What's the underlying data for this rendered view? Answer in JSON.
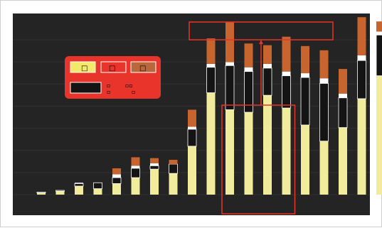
{
  "chart_data": {
    "type": "bar",
    "stacked": true,
    "categories": [
      "",
      "",
      "",
      "",
      "",
      "",
      "",
      "",
      "",
      "",
      "",
      "",
      "",
      "",
      "",
      "",
      "",
      "",
      ""
    ],
    "series": [
      {
        "values": [
          2,
          4,
          10,
          7,
          13,
          20,
          30,
          25,
          57,
          120,
          100,
          97,
          117,
          102,
          82,
          63,
          79,
          113,
          140
        ]
      },
      {
        "values": [
          1,
          1,
          3,
          7,
          7,
          11,
          4,
          11,
          20,
          30,
          52,
          48,
          32,
          38,
          56,
          68,
          35,
          45,
          48
        ]
      },
      {
        "values": [
          0,
          0,
          1,
          0,
          4,
          3,
          3,
          0,
          3,
          4,
          4,
          5,
          5,
          5,
          5,
          6,
          5,
          6,
          4
        ]
      },
      {
        "values": [
          0,
          0,
          0,
          0,
          7,
          10,
          6,
          5,
          20,
          30,
          47,
          28,
          22,
          41,
          32,
          33,
          29,
          45,
          12
        ]
      }
    ],
    "series_colors": [
      "#f1eb9c",
      "#141414",
      "#ffffff",
      "#c8642e"
    ],
    "background": "#242424",
    "gridlines": true,
    "ylim": [
      0,
      210
    ],
    "legend": {
      "placement": "top-left",
      "entries": [
        "□",
        "□",
        "□"
      ],
      "entry_colors": [
        "#f3e96a",
        "#e8342a",
        "#b8683a"
      ],
      "sub_labels": [
        "▫",
        "▫▫",
        "▫",
        "▫"
      ]
    },
    "annotation_box": "",
    "highlight": {
      "from_index": 10,
      "to_index": 13
    }
  }
}
